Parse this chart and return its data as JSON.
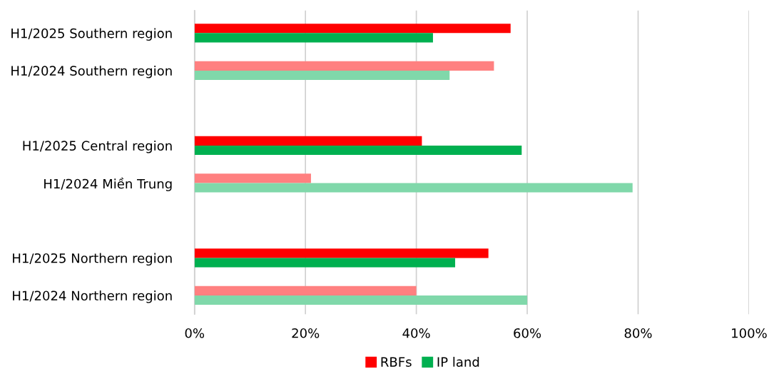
{
  "chart_data": {
    "type": "bar",
    "orientation": "horizontal",
    "categories": [
      "H1/2025 Southern region",
      "H1/2024 Southern region",
      null,
      "H1/2025 Central region",
      "H1/2024 Miền Trung",
      null,
      "H1/2025 Northern region",
      "H1/2024 Northern region"
    ],
    "series": [
      {
        "name": "RBFs",
        "color": "#ff0000",
        "colors": [
          "#ff0000",
          "#ff8080",
          null,
          "#ff0000",
          "#ff8080",
          null,
          "#ff0000",
          "#ff8080"
        ],
        "values": [
          57,
          54,
          null,
          41,
          21,
          null,
          53,
          40
        ]
      },
      {
        "name": "IP land",
        "color": "#00b050",
        "colors": [
          "#00b050",
          "#80d8aa",
          null,
          "#00b050",
          "#80d8aa",
          null,
          "#00b050",
          "#80d8aa"
        ],
        "values": [
          43,
          46,
          null,
          59,
          79,
          null,
          47,
          60
        ]
      }
    ],
    "xlim": [
      0,
      100
    ],
    "xticks": [
      {
        "value": 0,
        "label": "0%"
      },
      {
        "value": 20,
        "label": "20%"
      },
      {
        "value": 40,
        "label": "40%"
      },
      {
        "value": 60,
        "label": "60%"
      },
      {
        "value": 80,
        "label": "80%"
      },
      {
        "value": 100,
        "label": "100%"
      }
    ],
    "grid": "x",
    "legend": "bottom"
  }
}
